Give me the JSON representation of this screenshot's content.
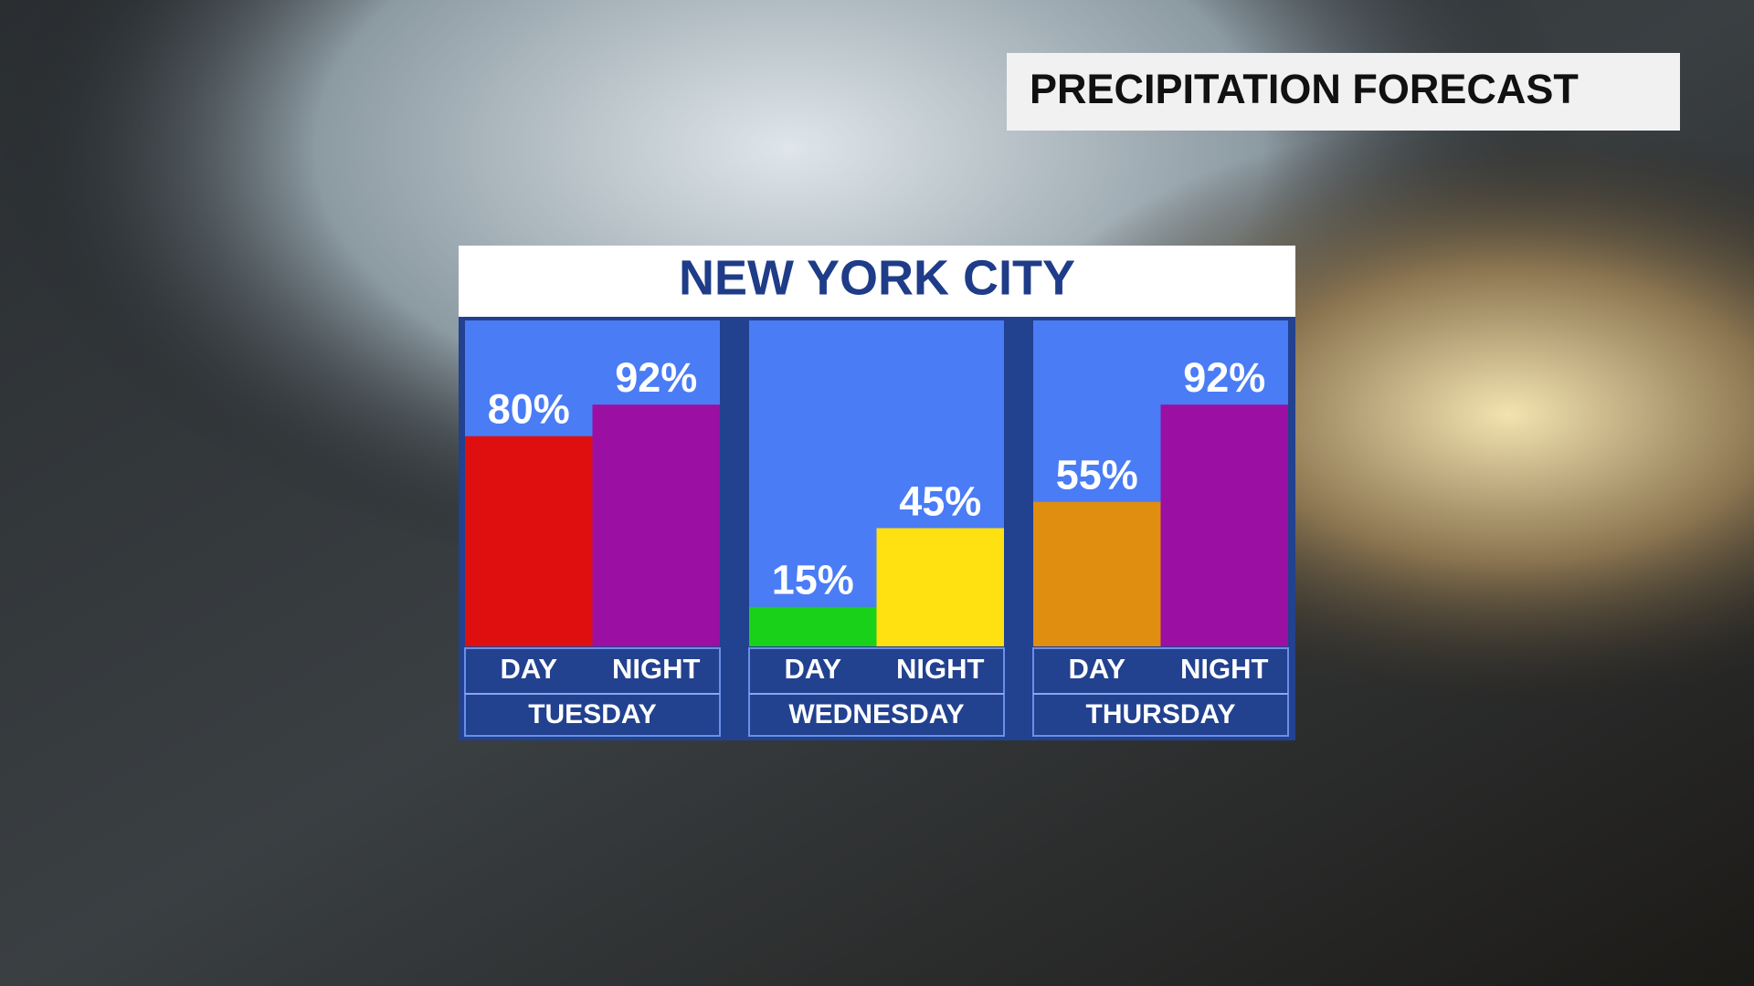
{
  "banner": "PRECIPITATION FORECAST",
  "chart_data": {
    "type": "bar",
    "title": "NEW YORK CITY",
    "groups": [
      {
        "name": "TUESDAY",
        "categories": [
          "DAY",
          "NIGHT"
        ],
        "values": [
          80,
          92
        ],
        "value_labels": [
          "80%",
          "92%"
        ],
        "colors": [
          "#e00f0f",
          "#9b0fa3"
        ]
      },
      {
        "name": "WEDNESDAY",
        "categories": [
          "DAY",
          "NIGHT"
        ],
        "values": [
          15,
          45
        ],
        "value_labels": [
          "15%",
          "45%"
        ],
        "colors": [
          "#1ad11a",
          "#ffe010"
        ]
      },
      {
        "name": "THURSDAY",
        "categories": [
          "DAY",
          "NIGHT"
        ],
        "values": [
          55,
          92
        ],
        "value_labels": [
          "55%",
          "92%"
        ],
        "colors": [
          "#e08e10",
          "#9b0fa3"
        ]
      }
    ]
  }
}
